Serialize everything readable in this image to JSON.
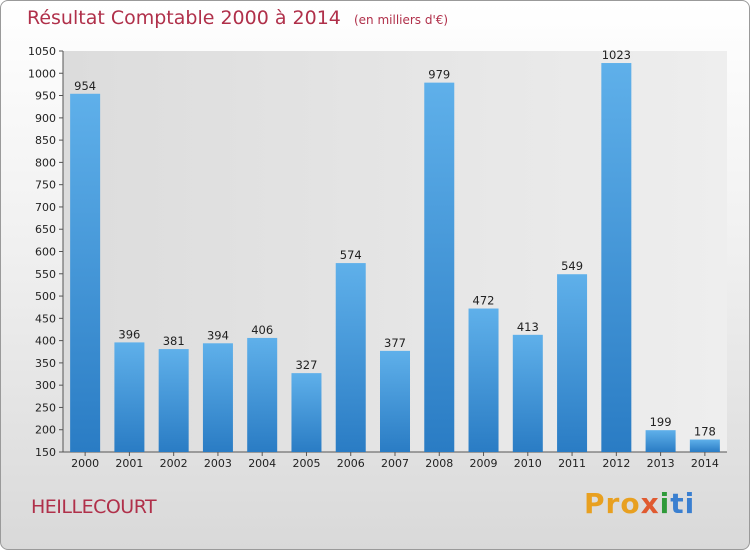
{
  "header": {
    "title": "Résultat Comptable 2000 à 2014",
    "unit": "(en milliers d'€)"
  },
  "footer": {
    "location": "HEILLECOURT",
    "brand": "Proxiti"
  },
  "colors": {
    "title": "#b0304a",
    "bar_top": "#5fb0ea",
    "bar_bottom": "#2a7cc4",
    "plot_bg": "#e8e8e8"
  },
  "chart_data": {
    "type": "bar",
    "title": "Résultat Comptable 2000 à 2014",
    "categories": [
      "2000",
      "2001",
      "2002",
      "2003",
      "2004",
      "2005",
      "2006",
      "2007",
      "2008",
      "2009",
      "2010",
      "2011",
      "2012",
      "2013",
      "2014"
    ],
    "values": [
      954,
      396,
      381,
      394,
      406,
      327,
      574,
      377,
      979,
      472,
      413,
      549,
      1023,
      199,
      178
    ],
    "ylim": [
      150,
      1050
    ],
    "yticks": [
      150,
      200,
      250,
      300,
      350,
      400,
      450,
      500,
      550,
      600,
      650,
      700,
      750,
      800,
      850,
      900,
      950,
      1000,
      1050
    ],
    "grid": false,
    "xlabel": "",
    "ylabel": ""
  }
}
